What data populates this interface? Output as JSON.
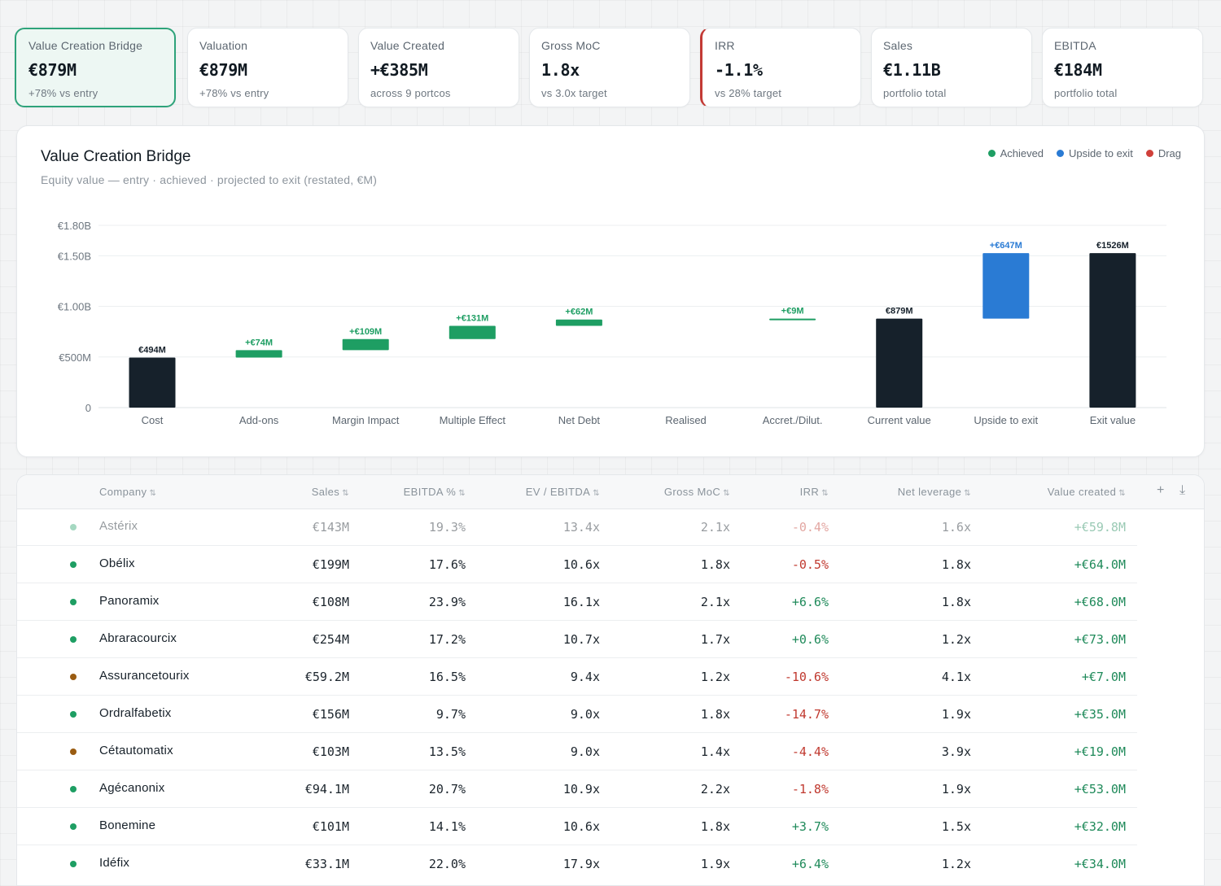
{
  "kpis": [
    {
      "label": "Value Creation Bridge",
      "value": "€879M",
      "sub": "+78% vs entry"
    },
    {
      "label": "Valuation",
      "value": "€879M",
      "sub": "+78% vs entry"
    },
    {
      "label": "Value Created",
      "value": "+€385M",
      "sub": "across 9 portcos"
    },
    {
      "label": "Gross MoC",
      "value": "1.8x",
      "sub": "vs 3.0x target"
    },
    {
      "label": "IRR",
      "value": "-1.1%",
      "sub": "vs 28% target"
    },
    {
      "label": "Sales",
      "value": "€1.11B",
      "sub": "portfolio total"
    },
    {
      "label": "EBITDA",
      "value": "€184M",
      "sub": "portfolio total"
    }
  ],
  "legend": [
    {
      "label": "Achieved",
      "color": "#1e9e63"
    },
    {
      "label": "Upside to exit",
      "color": "#2a7bd4"
    },
    {
      "label": "Drag",
      "color": "#d0403a"
    }
  ],
  "chart_data": {
    "type": "bar",
    "subtype": "waterfall",
    "title": "Value Creation Bridge",
    "subtitle": "Equity value — entry · achieved · projected to exit (restated, €M)",
    "unit": "€M",
    "ylim": [
      0,
      1800
    ],
    "yticks": [
      {
        "value": 0,
        "label": "0"
      },
      {
        "value": 500,
        "label": "€500M"
      },
      {
        "value": 1000,
        "label": "€1.00B"
      },
      {
        "value": 1500,
        "label": "€1.50B"
      },
      {
        "value": 1800,
        "label": "€1.80B"
      }
    ],
    "grid": true,
    "legend_position": "top-right",
    "categories": [
      "Cost",
      "Add-ons",
      "Margin Impact",
      "Multiple Effect",
      "Net Debt",
      "Realised",
      "Accret./Dilut.",
      "Current value",
      "Upside to exit",
      "Exit value"
    ],
    "bars": [
      {
        "category": "Cost",
        "kind": "total",
        "start": 0,
        "end": 494,
        "label": "€494M",
        "color": "#16212b"
      },
      {
        "category": "Add-ons",
        "kind": "delta",
        "start": 494,
        "end": 568,
        "label": "+€74M",
        "color": "#1e9e63"
      },
      {
        "category": "Margin Impact",
        "kind": "delta",
        "start": 568,
        "end": 677,
        "label": "+€109M",
        "color": "#1e9e63"
      },
      {
        "category": "Multiple Effect",
        "kind": "delta",
        "start": 677,
        "end": 808,
        "label": "+€131M",
        "color": "#1e9e63"
      },
      {
        "category": "Net Debt",
        "kind": "delta",
        "start": 808,
        "end": 870,
        "label": "+€62M",
        "color": "#1e9e63"
      },
      {
        "category": "Realised",
        "kind": "delta",
        "start": 870,
        "end": 870,
        "label": "",
        "color": "#1e9e63"
      },
      {
        "category": "Accret./Dilut.",
        "kind": "delta",
        "start": 870,
        "end": 879,
        "label": "+€9M",
        "color": "#1e9e63"
      },
      {
        "category": "Current value",
        "kind": "total",
        "start": 0,
        "end": 879,
        "label": "€879M",
        "color": "#16212b"
      },
      {
        "category": "Upside to exit",
        "kind": "delta",
        "start": 879,
        "end": 1526,
        "label": "+€647M",
        "color": "#2a7bd4"
      },
      {
        "category": "Exit value",
        "kind": "total",
        "start": 0,
        "end": 1526,
        "label": "€1526M",
        "color": "#16212b"
      }
    ]
  },
  "table": {
    "columns": [
      {
        "key": "company",
        "label": "Company"
      },
      {
        "key": "sales",
        "label": "Sales"
      },
      {
        "key": "ebitda_pct",
        "label": "EBITDA %"
      },
      {
        "key": "ev_ebitda",
        "label": "EV / EBITDA"
      },
      {
        "key": "gross_moc",
        "label": "Gross MoC"
      },
      {
        "key": "irr",
        "label": "IRR"
      },
      {
        "key": "net_leverage",
        "label": "Net leverage"
      },
      {
        "key": "value_created",
        "label": "Value created"
      }
    ],
    "sort_glyph": "⇅",
    "add_icon": "+",
    "download_icon": "⤓",
    "rows": [
      {
        "company": "Astérix",
        "status": "#1e9e63",
        "faded": true,
        "sales": "€143M",
        "ebitda_pct": "19.3%",
        "ev_ebitda": "13.4x",
        "gross_moc": "2.1x",
        "irr": "-0.4%",
        "net_leverage": "1.6x",
        "value_created": "+€59.8M"
      },
      {
        "company": "Obélix",
        "status": "#1e9e63",
        "faded": false,
        "sales": "€199M",
        "ebitda_pct": "17.6%",
        "ev_ebitda": "10.6x",
        "gross_moc": "1.8x",
        "irr": "-0.5%",
        "net_leverage": "1.8x",
        "value_created": "+€64.0M"
      },
      {
        "company": "Panoramix",
        "status": "#1e9e63",
        "faded": false,
        "sales": "€108M",
        "ebitda_pct": "23.9%",
        "ev_ebitda": "16.1x",
        "gross_moc": "2.1x",
        "irr": "+6.6%",
        "net_leverage": "1.8x",
        "value_created": "+€68.0M"
      },
      {
        "company": "Abraracourcix",
        "status": "#1e9e63",
        "faded": false,
        "sales": "€254M",
        "ebitda_pct": "17.2%",
        "ev_ebitda": "10.7x",
        "gross_moc": "1.7x",
        "irr": "+0.6%",
        "net_leverage": "1.2x",
        "value_created": "+€73.0M"
      },
      {
        "company": "Assurancetourix",
        "status": "#9a5c12",
        "faded": false,
        "sales": "€59.2M",
        "ebitda_pct": "16.5%",
        "ev_ebitda": "9.4x",
        "gross_moc": "1.2x",
        "irr": "-10.6%",
        "net_leverage": "4.1x",
        "value_created": "+€7.0M"
      },
      {
        "company": "Ordralfabetix",
        "status": "#1e9e63",
        "faded": false,
        "sales": "€156M",
        "ebitda_pct": "9.7%",
        "ev_ebitda": "9.0x",
        "gross_moc": "1.8x",
        "irr": "-14.7%",
        "net_leverage": "1.9x",
        "value_created": "+€35.0M"
      },
      {
        "company": "Cétautomatix",
        "status": "#9a5c12",
        "faded": false,
        "sales": "€103M",
        "ebitda_pct": "13.5%",
        "ev_ebitda": "9.0x",
        "gross_moc": "1.4x",
        "irr": "-4.4%",
        "net_leverage": "3.9x",
        "value_created": "+€19.0M"
      },
      {
        "company": "Agécanonix",
        "status": "#1e9e63",
        "faded": false,
        "sales": "€94.1M",
        "ebitda_pct": "20.7%",
        "ev_ebitda": "10.9x",
        "gross_moc": "2.2x",
        "irr": "-1.8%",
        "net_leverage": "1.9x",
        "value_created": "+€53.0M"
      },
      {
        "company": "Bonemine",
        "status": "#1e9e63",
        "faded": false,
        "sales": "€101M",
        "ebitda_pct": "14.1%",
        "ev_ebitda": "10.6x",
        "gross_moc": "1.8x",
        "irr": "+3.7%",
        "net_leverage": "1.5x",
        "value_created": "+€32.0M"
      },
      {
        "company": "Idéfix",
        "status": "#1e9e63",
        "faded": false,
        "sales": "€33.1M",
        "ebitda_pct": "22.0%",
        "ev_ebitda": "17.9x",
        "gross_moc": "1.9x",
        "irr": "+6.4%",
        "net_leverage": "1.2x",
        "value_created": "+€34.0M"
      }
    ]
  }
}
